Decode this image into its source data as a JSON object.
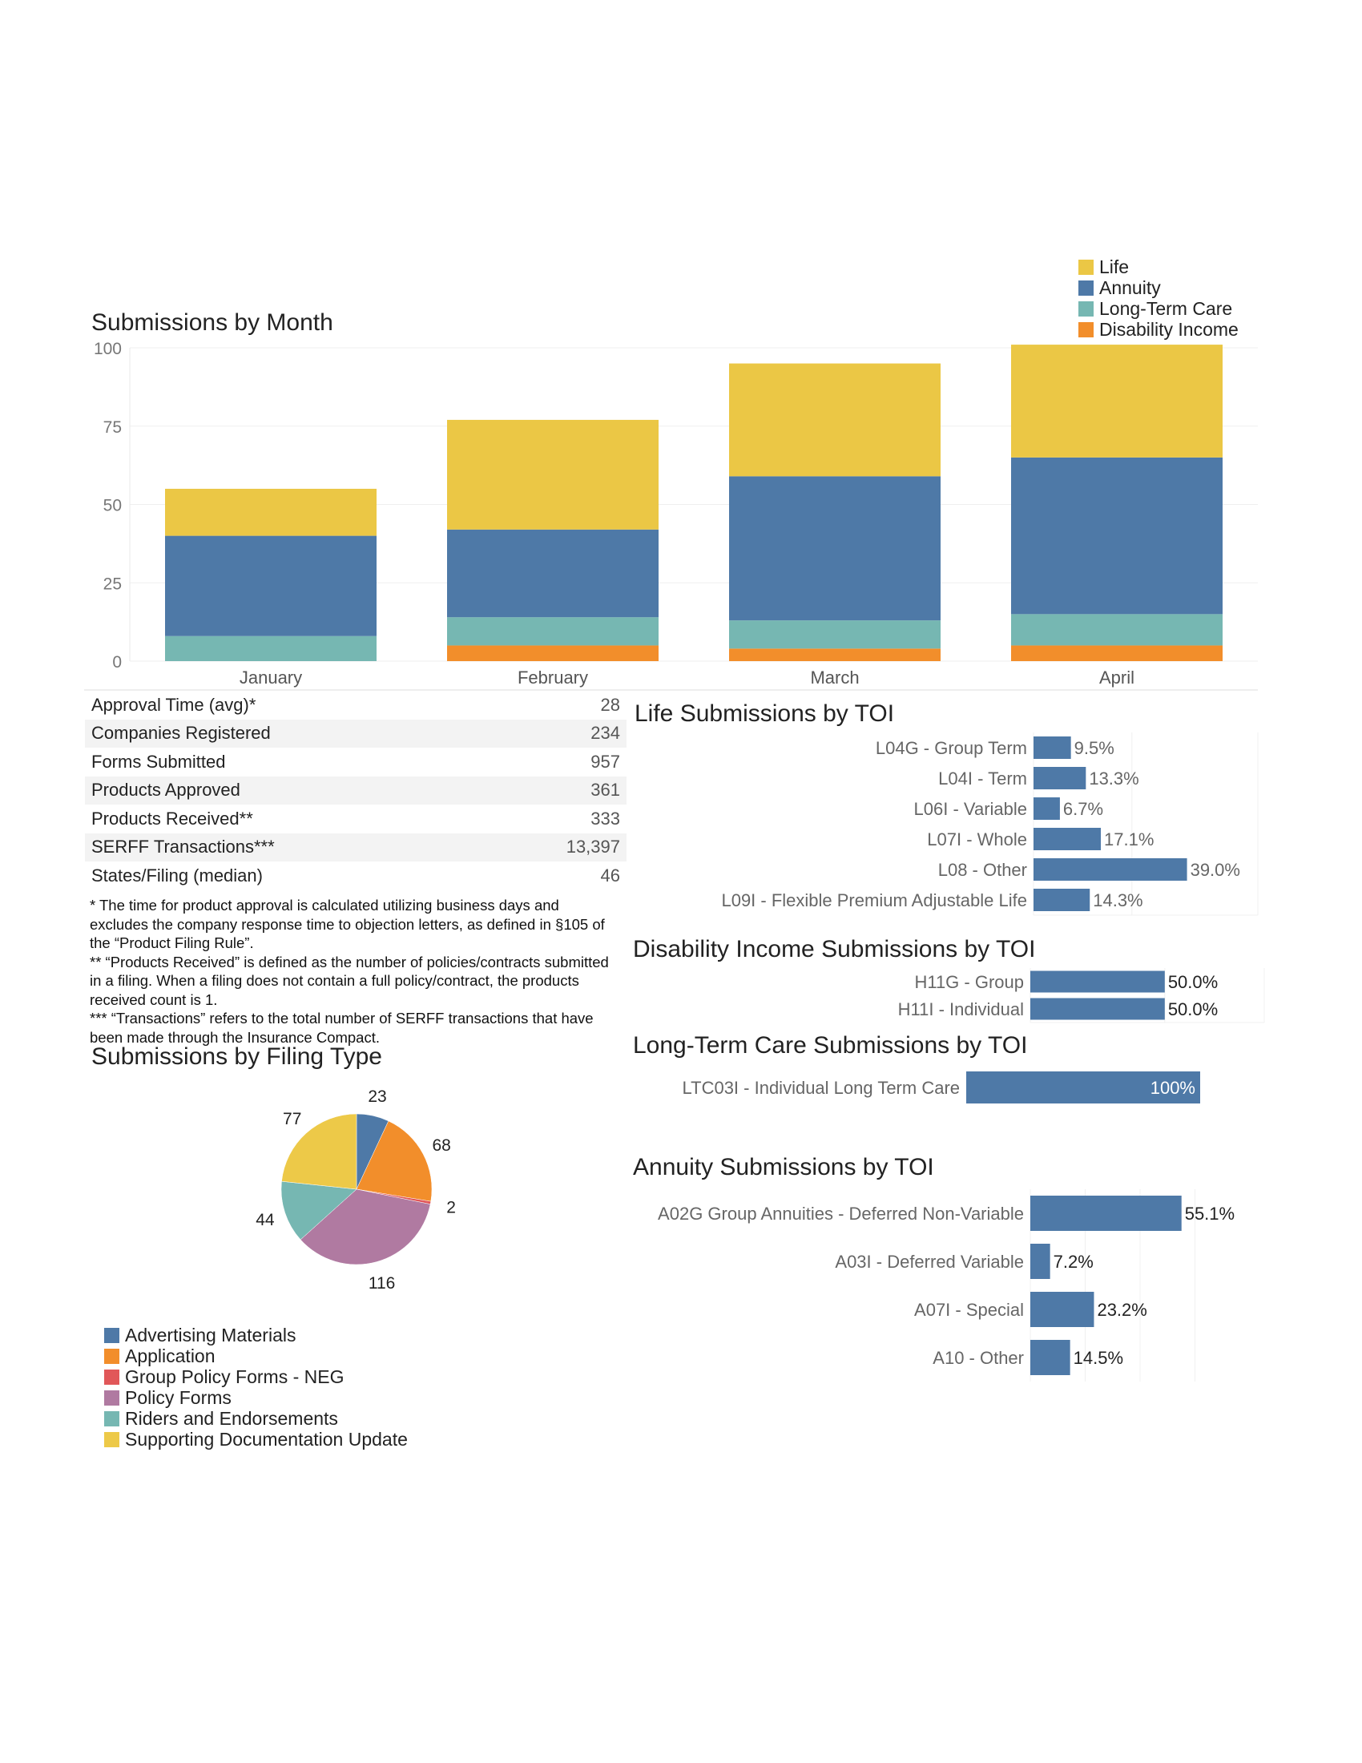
{
  "legend_months": {
    "items": [
      {
        "label": "Life",
        "color": "#EBC745"
      },
      {
        "label": "Annuity",
        "color": "#4E79A7"
      },
      {
        "label": "Long-Term Care",
        "color": "#76B7B2"
      },
      {
        "label": "Disability Income",
        "color": "#F28E2B"
      }
    ]
  },
  "stats": {
    "rows": [
      {
        "label": "Approval Time (avg)*",
        "value": "28"
      },
      {
        "label": "Companies Registered",
        "value": "234"
      },
      {
        "label": "Forms Submitted",
        "value": "957"
      },
      {
        "label": "Products Approved",
        "value": "361"
      },
      {
        "label": "Products Received**",
        "value": "333"
      },
      {
        "label": "SERFF Transactions***",
        "value": "13,397"
      },
      {
        "label": "States/Filing (median)",
        "value": "46"
      }
    ]
  },
  "notes": {
    "n1": "* The time for product approval is calculated utilizing business days and excludes the company response time to objection letters, as defined in §105 of the “Product Filing Rule”.",
    "n2": "** “Products Received” is defined as the number of policies/contracts submitted in a filing. When a filing does not contain a full policy/contract, the products received count is 1.",
    "n3": "*** “Transactions” refers to the total number of SERFF transactions that have been made through the Insurance Compact."
  },
  "legend_filing": {
    "items": [
      {
        "label": "Advertising Materials",
        "color": "#4E79A7"
      },
      {
        "label": "Application",
        "color": "#F28E2B"
      },
      {
        "label": "Group Policy Forms - NEG",
        "color": "#E15759"
      },
      {
        "label": "Policy Forms",
        "color": "#B07AA1"
      },
      {
        "label": "Riders and Endorsements",
        "color": "#76B7B2"
      },
      {
        "label": "Supporting Documentation Update",
        "color": "#EDC948"
      }
    ]
  },
  "chart_data": [
    {
      "type": "bar",
      "stacked": true,
      "title": "Submissions by Month",
      "categories": [
        "January",
        "February",
        "March",
        "April"
      ],
      "series": [
        {
          "name": "Disability Income",
          "color": "#F28E2B",
          "values": [
            0,
            5,
            4,
            5
          ]
        },
        {
          "name": "Long-Term Care",
          "color": "#76B7B2",
          "values": [
            8,
            9,
            9,
            10
          ]
        },
        {
          "name": "Annuity",
          "color": "#4E79A7",
          "values": [
            32,
            28,
            46,
            50
          ]
        },
        {
          "name": "Life",
          "color": "#EBC745",
          "values": [
            15,
            35,
            36,
            36
          ]
        }
      ],
      "ylim": [
        0,
        100
      ],
      "yticks": [
        0,
        25,
        50,
        75,
        100
      ],
      "grid": true,
      "legend": "top-right"
    },
    {
      "type": "pie",
      "title": "Submissions by Filing Type",
      "slices": [
        {
          "name": "Advertising Materials",
          "value": 23,
          "color": "#4E79A7"
        },
        {
          "name": "Application",
          "value": 68,
          "color": "#F28E2B"
        },
        {
          "name": "Group Policy Forms - NEG",
          "value": 2,
          "color": "#E15759"
        },
        {
          "name": "Policy Forms",
          "value": 116,
          "color": "#B07AA1"
        },
        {
          "name": "Riders and Endorsements",
          "value": 44,
          "color": "#76B7B2"
        },
        {
          "name": "Supporting Documentation Update",
          "value": 77,
          "color": "#EDC948"
        }
      ],
      "legend": "bottom-left"
    },
    {
      "type": "bar",
      "orientation": "horizontal",
      "title": "Life Submissions by TOI",
      "categories": [
        "L04G - Group Term",
        "L04I - Term",
        "L06I - Variable",
        "L07I - Whole",
        "L08 - Other",
        "L09I - Flexible Premium Adjustable Life"
      ],
      "values": [
        9.5,
        13.3,
        6.7,
        17.1,
        39.0,
        14.3
      ],
      "labels": [
        "9.5%",
        "13.3%",
        "6.7%",
        "17.1%",
        "39.0%",
        "14.3%"
      ],
      "xlim": [
        0,
        57
      ]
    },
    {
      "type": "bar",
      "orientation": "horizontal",
      "title": "Disability Income Submissions by TOI",
      "categories": [
        "H11G - Group",
        "H11I - Individual"
      ],
      "values": [
        50.0,
        50.0
      ],
      "labels": [
        "50.0%",
        "50.0%"
      ],
      "xlim": [
        0,
        87
      ]
    },
    {
      "type": "bar",
      "orientation": "horizontal",
      "title": "Long-Term Care Submissions by TOI",
      "categories": [
        "LTC03I - Individual Long Term Care"
      ],
      "values": [
        100
      ],
      "labels": [
        "100%"
      ],
      "xlim": [
        0,
        100
      ]
    },
    {
      "type": "bar",
      "orientation": "horizontal",
      "title": "Annuity Submissions by TOI",
      "categories": [
        "A02G Group Annuities - Deferred Non-Variable",
        "A03I - Deferred Variable",
        "A07I - Special",
        "A10 - Other"
      ],
      "values": [
        55.1,
        7.2,
        23.2,
        14.5
      ],
      "labels": [
        "55.1%",
        "7.2%",
        "23.2%",
        "14.5%"
      ],
      "xlim": [
        0,
        80
      ]
    }
  ]
}
